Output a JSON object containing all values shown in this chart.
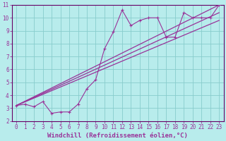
{
  "xlabel": "Windchill (Refroidissement éolien,°C)",
  "bg_color": "#b8ecec",
  "grid_color": "#88cccc",
  "line_color": "#993399",
  "spine_color": "#660066",
  "xlim": [
    -0.5,
    23.5
  ],
  "ylim": [
    2,
    11
  ],
  "xticks": [
    0,
    1,
    2,
    3,
    4,
    5,
    6,
    7,
    8,
    9,
    10,
    11,
    12,
    13,
    14,
    15,
    16,
    17,
    18,
    19,
    20,
    21,
    22,
    23
  ],
  "yticks": [
    2,
    3,
    4,
    5,
    6,
    7,
    8,
    9,
    10,
    11
  ],
  "noisy_x": [
    0,
    1,
    2,
    3,
    4,
    5,
    6,
    7,
    8,
    9,
    10,
    11,
    12,
    13,
    14,
    15,
    16,
    17,
    18,
    19,
    20,
    21,
    22,
    23
  ],
  "noisy_y": [
    3.2,
    3.3,
    3.1,
    3.5,
    2.6,
    2.7,
    2.7,
    3.3,
    4.5,
    5.2,
    7.6,
    8.9,
    10.6,
    9.4,
    9.8,
    10.0,
    10.0,
    8.5,
    8.5,
    10.4,
    10.0,
    10.0,
    10.0,
    11.0
  ],
  "line1_x": [
    0,
    23
  ],
  "line1_y": [
    3.2,
    11.0
  ],
  "line2_x": [
    0,
    23
  ],
  "line2_y": [
    3.2,
    10.4
  ],
  "line3_x": [
    0,
    23
  ],
  "line3_y": [
    3.2,
    9.8
  ],
  "tick_fontsize": 5.5,
  "label_fontsize": 6.5
}
